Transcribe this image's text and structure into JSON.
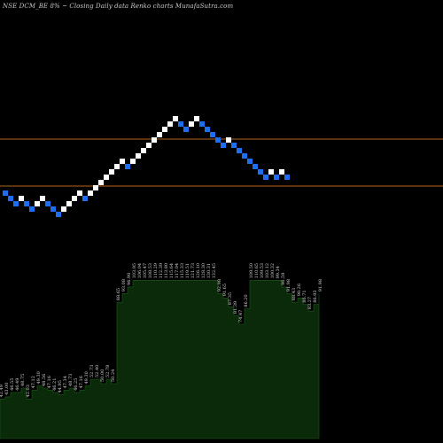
{
  "title": "NSE DCM_BE 8% ~   Closing Daily data  Renko  charts MunafaSutra.com",
  "colors": {
    "background": "#000000",
    "up_brick": "#ffffff",
    "down_brick": "#1e6ef0",
    "reference_line": "#b4641e",
    "volume_fill": "#0a2a0a",
    "volume_edge": "#1e5a1e",
    "label_text": "#d2d2d2"
  },
  "chart_data": {
    "type": "renko",
    "brick_directions": [
      "D",
      "D",
      "D",
      "U",
      "D",
      "D",
      "U",
      "U",
      "D",
      "D",
      "D",
      "U",
      "U",
      "U",
      "U",
      "D",
      "U",
      "U",
      "U",
      "U",
      "U",
      "U",
      "U",
      "D",
      "U",
      "U",
      "U",
      "U",
      "U",
      "U",
      "U",
      "U",
      "U",
      "D",
      "D",
      "U",
      "U",
      "D",
      "D",
      "D",
      "D",
      "D",
      "U",
      "D",
      "D",
      "D",
      "D",
      "D",
      "D",
      "D",
      "U",
      "D",
      "U",
      "D"
    ],
    "reference_lines": [
      "upper",
      "lower"
    ],
    "volume_labels": [
      "42.49",
      "43.00",
      "46.55",
      "46.49",
      "48.75",
      "42.03",
      "47.12",
      "49.30",
      "48.56",
      "47.16",
      "46.21",
      "44.95",
      "47.34",
      "48.73",
      "46.25",
      "47.16",
      "49.30",
      "52.73",
      "52.40",
      "50.00",
      "52.78",
      "50.24",
      "88.65",
      "93.08",
      "96.90",
      "103.95",
      "106.04",
      "105.47",
      "108.53",
      "110.29",
      "112.39",
      "113.80",
      "115.64",
      "117.04",
      "115.33",
      "119.51",
      "121.73",
      "126.10",
      "128.30",
      "130.31",
      "132.45",
      "92.98",
      "91.65",
      "87.35",
      "81.39",
      "74.47",
      "86.20",
      "109.50",
      "110.65",
      "109.53",
      "103.12",
      "100.32",
      "99.34",
      "96.59",
      "91.98",
      "88.43",
      "90.26",
      "86.71",
      "83.27",
      "86.93",
      "91.98"
    ],
    "volume_levels": [
      0.18,
      0.19,
      0.21,
      0.21,
      0.23,
      0.18,
      0.22,
      0.24,
      0.23,
      0.22,
      0.21,
      0.2,
      0.22,
      0.23,
      0.21,
      0.22,
      0.24,
      0.27,
      0.27,
      0.25,
      0.27,
      0.25,
      0.62,
      0.66,
      0.69,
      0.72,
      0.72,
      0.72,
      0.72,
      0.72,
      0.72,
      0.72,
      0.72,
      0.72,
      0.72,
      0.72,
      0.72,
      0.72,
      0.72,
      0.72,
      0.72,
      0.66,
      0.64,
      0.6,
      0.56,
      0.52,
      0.59,
      0.72,
      0.72,
      0.72,
      0.72,
      0.72,
      0.72,
      0.69,
      0.66,
      0.62,
      0.64,
      0.61,
      0.58,
      0.61,
      0.66
    ]
  }
}
